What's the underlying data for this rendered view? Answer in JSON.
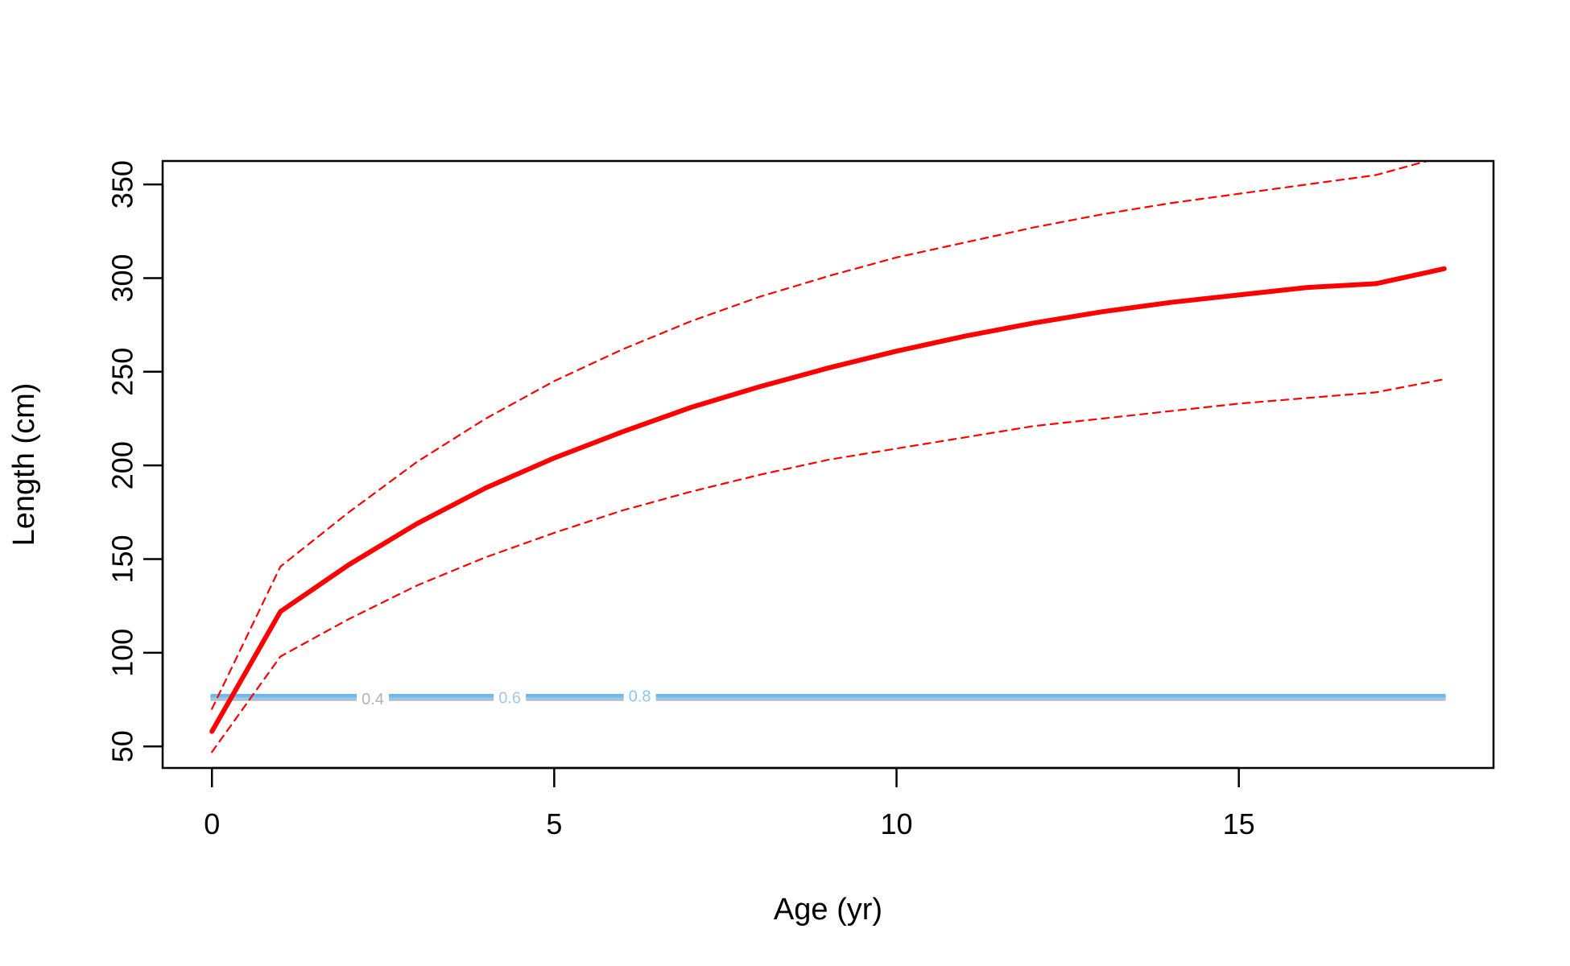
{
  "chart_data": {
    "type": "line",
    "title": "",
    "xlabel": "Age (yr)",
    "ylabel": "Length (cm)",
    "xlim": [
      -0.72,
      18.72
    ],
    "ylim": [
      38.5,
      362.5
    ],
    "xticks": [
      0,
      5,
      10,
      15
    ],
    "xtick_labels": [
      "0",
      "5",
      "10",
      "15"
    ],
    "yticks": [
      50,
      100,
      150,
      200,
      250,
      300,
      350
    ],
    "ytick_labels": [
      "50",
      "100",
      "150",
      "200",
      "250",
      "300",
      "350"
    ],
    "grid": false,
    "legend": "none",
    "x": [
      0,
      1,
      2,
      3,
      4,
      5,
      6,
      7,
      8,
      9,
      10,
      11,
      12,
      13,
      14,
      15,
      16,
      17,
      18
    ],
    "series": [
      {
        "role": "mean",
        "color": "#ff0000",
        "style": "solid",
        "values": [
          58,
          122,
          147,
          169,
          188,
          204,
          218,
          231,
          242,
          252,
          261,
          269,
          276,
          282,
          287,
          291,
          295,
          297,
          305
        ]
      },
      {
        "role": "upper",
        "color": "#ff0000",
        "style": "dashed",
        "values": [
          70,
          146,
          175,
          202,
          225,
          245,
          262,
          277,
          290,
          301,
          311,
          319,
          327,
          334,
          340,
          345,
          350,
          355,
          365
        ]
      },
      {
        "role": "lower",
        "color": "#ff0000",
        "style": "dashed",
        "values": [
          47,
          98,
          118,
          136,
          151,
          164,
          176,
          186,
          195,
          203,
          209,
          215,
          221,
          225,
          229,
          233,
          236,
          239,
          246
        ]
      }
    ],
    "contours": {
      "x_range": [
        0,
        18
      ],
      "levels": [
        {
          "value": 75.2,
          "color": "#b3b3b3"
        },
        {
          "value": 75.8,
          "color": "#a7c8e0"
        },
        {
          "value": 76.4,
          "color": "#8cc6ee"
        },
        {
          "value": 77.2,
          "color": "#6fb8ec"
        }
      ],
      "labels": [
        {
          "text": "0.4",
          "x": 2.35,
          "y": 75.5,
          "color": "#b3b3b3"
        },
        {
          "text": "0.6",
          "x": 4.35,
          "y": 76.2,
          "color": "#a7c8e0"
        },
        {
          "text": "0.8",
          "x": 6.25,
          "y": 77.0,
          "color": "#8cc6ee"
        }
      ]
    }
  }
}
